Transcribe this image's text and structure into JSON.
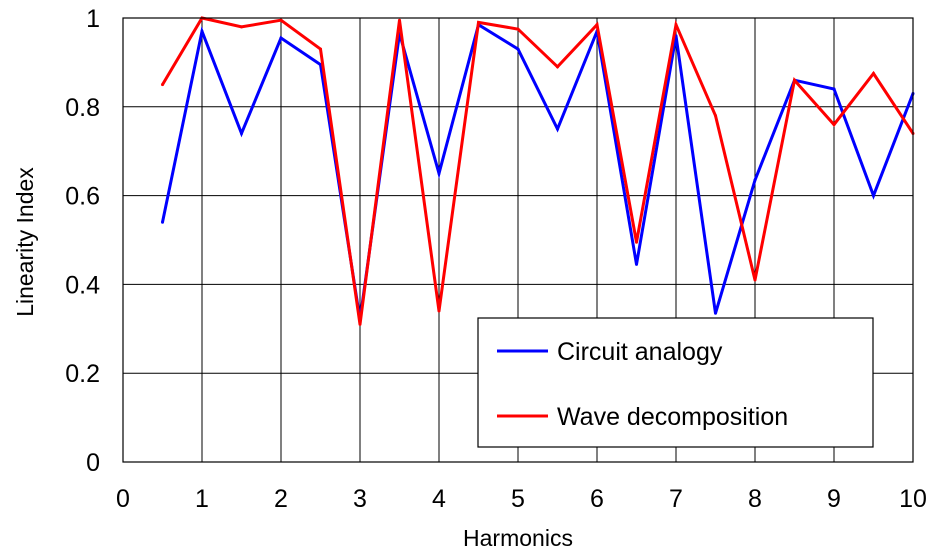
{
  "chart_data": {
    "type": "line",
    "title": "",
    "xlabel": "Harmonics",
    "ylabel": "Linearity Index",
    "xlim": [
      0,
      10
    ],
    "ylim": [
      0,
      1
    ],
    "x_ticks": [
      0,
      1,
      2,
      3,
      4,
      5,
      6,
      7,
      8,
      9,
      10
    ],
    "y_ticks": [
      0,
      0.2,
      0.4,
      0.6,
      0.8,
      1
    ],
    "x_tick_labels": [
      "0",
      "1",
      "2",
      "3",
      "4",
      "5",
      "6",
      "7",
      "8",
      "9",
      "10"
    ],
    "y_tick_labels": [
      "0",
      "0.2",
      "0.4",
      "0.6",
      "0.8",
      "1"
    ],
    "grid": true,
    "legend_position": "bottom-right",
    "x": [
      0.5,
      1,
      1.5,
      2,
      2.5,
      3,
      3.5,
      4,
      4.5,
      5,
      5.5,
      6,
      6.5,
      7,
      7.5,
      8,
      8.5,
      9,
      9.5,
      10
    ],
    "series": [
      {
        "name": "Circuit analogy",
        "color": "#0000ff",
        "values": [
          0.54,
          0.97,
          0.74,
          0.955,
          0.895,
          0.32,
          0.965,
          0.65,
          0.985,
          0.93,
          0.75,
          0.97,
          0.445,
          0.96,
          0.335,
          0.635,
          0.86,
          0.84,
          0.6,
          0.83
        ]
      },
      {
        "name": "Wave decomposition",
        "color": "#ff0000",
        "values": [
          0.85,
          1.0,
          0.98,
          0.995,
          0.93,
          0.31,
          0.995,
          0.34,
          0.99,
          0.975,
          0.89,
          0.985,
          0.495,
          0.985,
          0.78,
          0.41,
          0.86,
          0.76,
          0.875,
          0.74
        ]
      }
    ]
  }
}
